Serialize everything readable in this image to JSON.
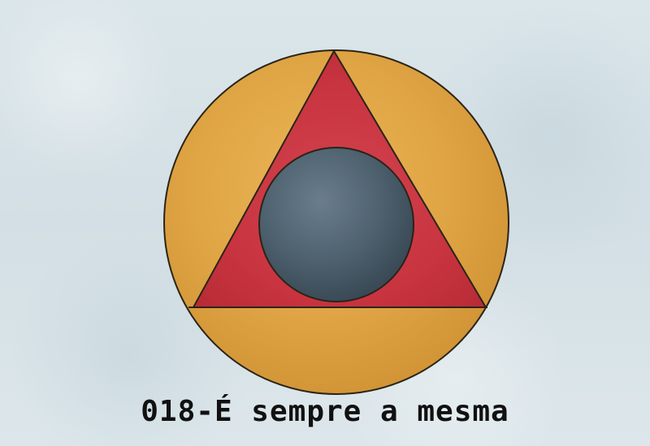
{
  "caption": "018-É sempre a mesma",
  "colors": {
    "paper": "#d9e4e8",
    "outer_circle": "#e0a545",
    "triangle": "#c8343f",
    "inner_circle": "#4b5d6b",
    "outline": "#2a2418"
  }
}
